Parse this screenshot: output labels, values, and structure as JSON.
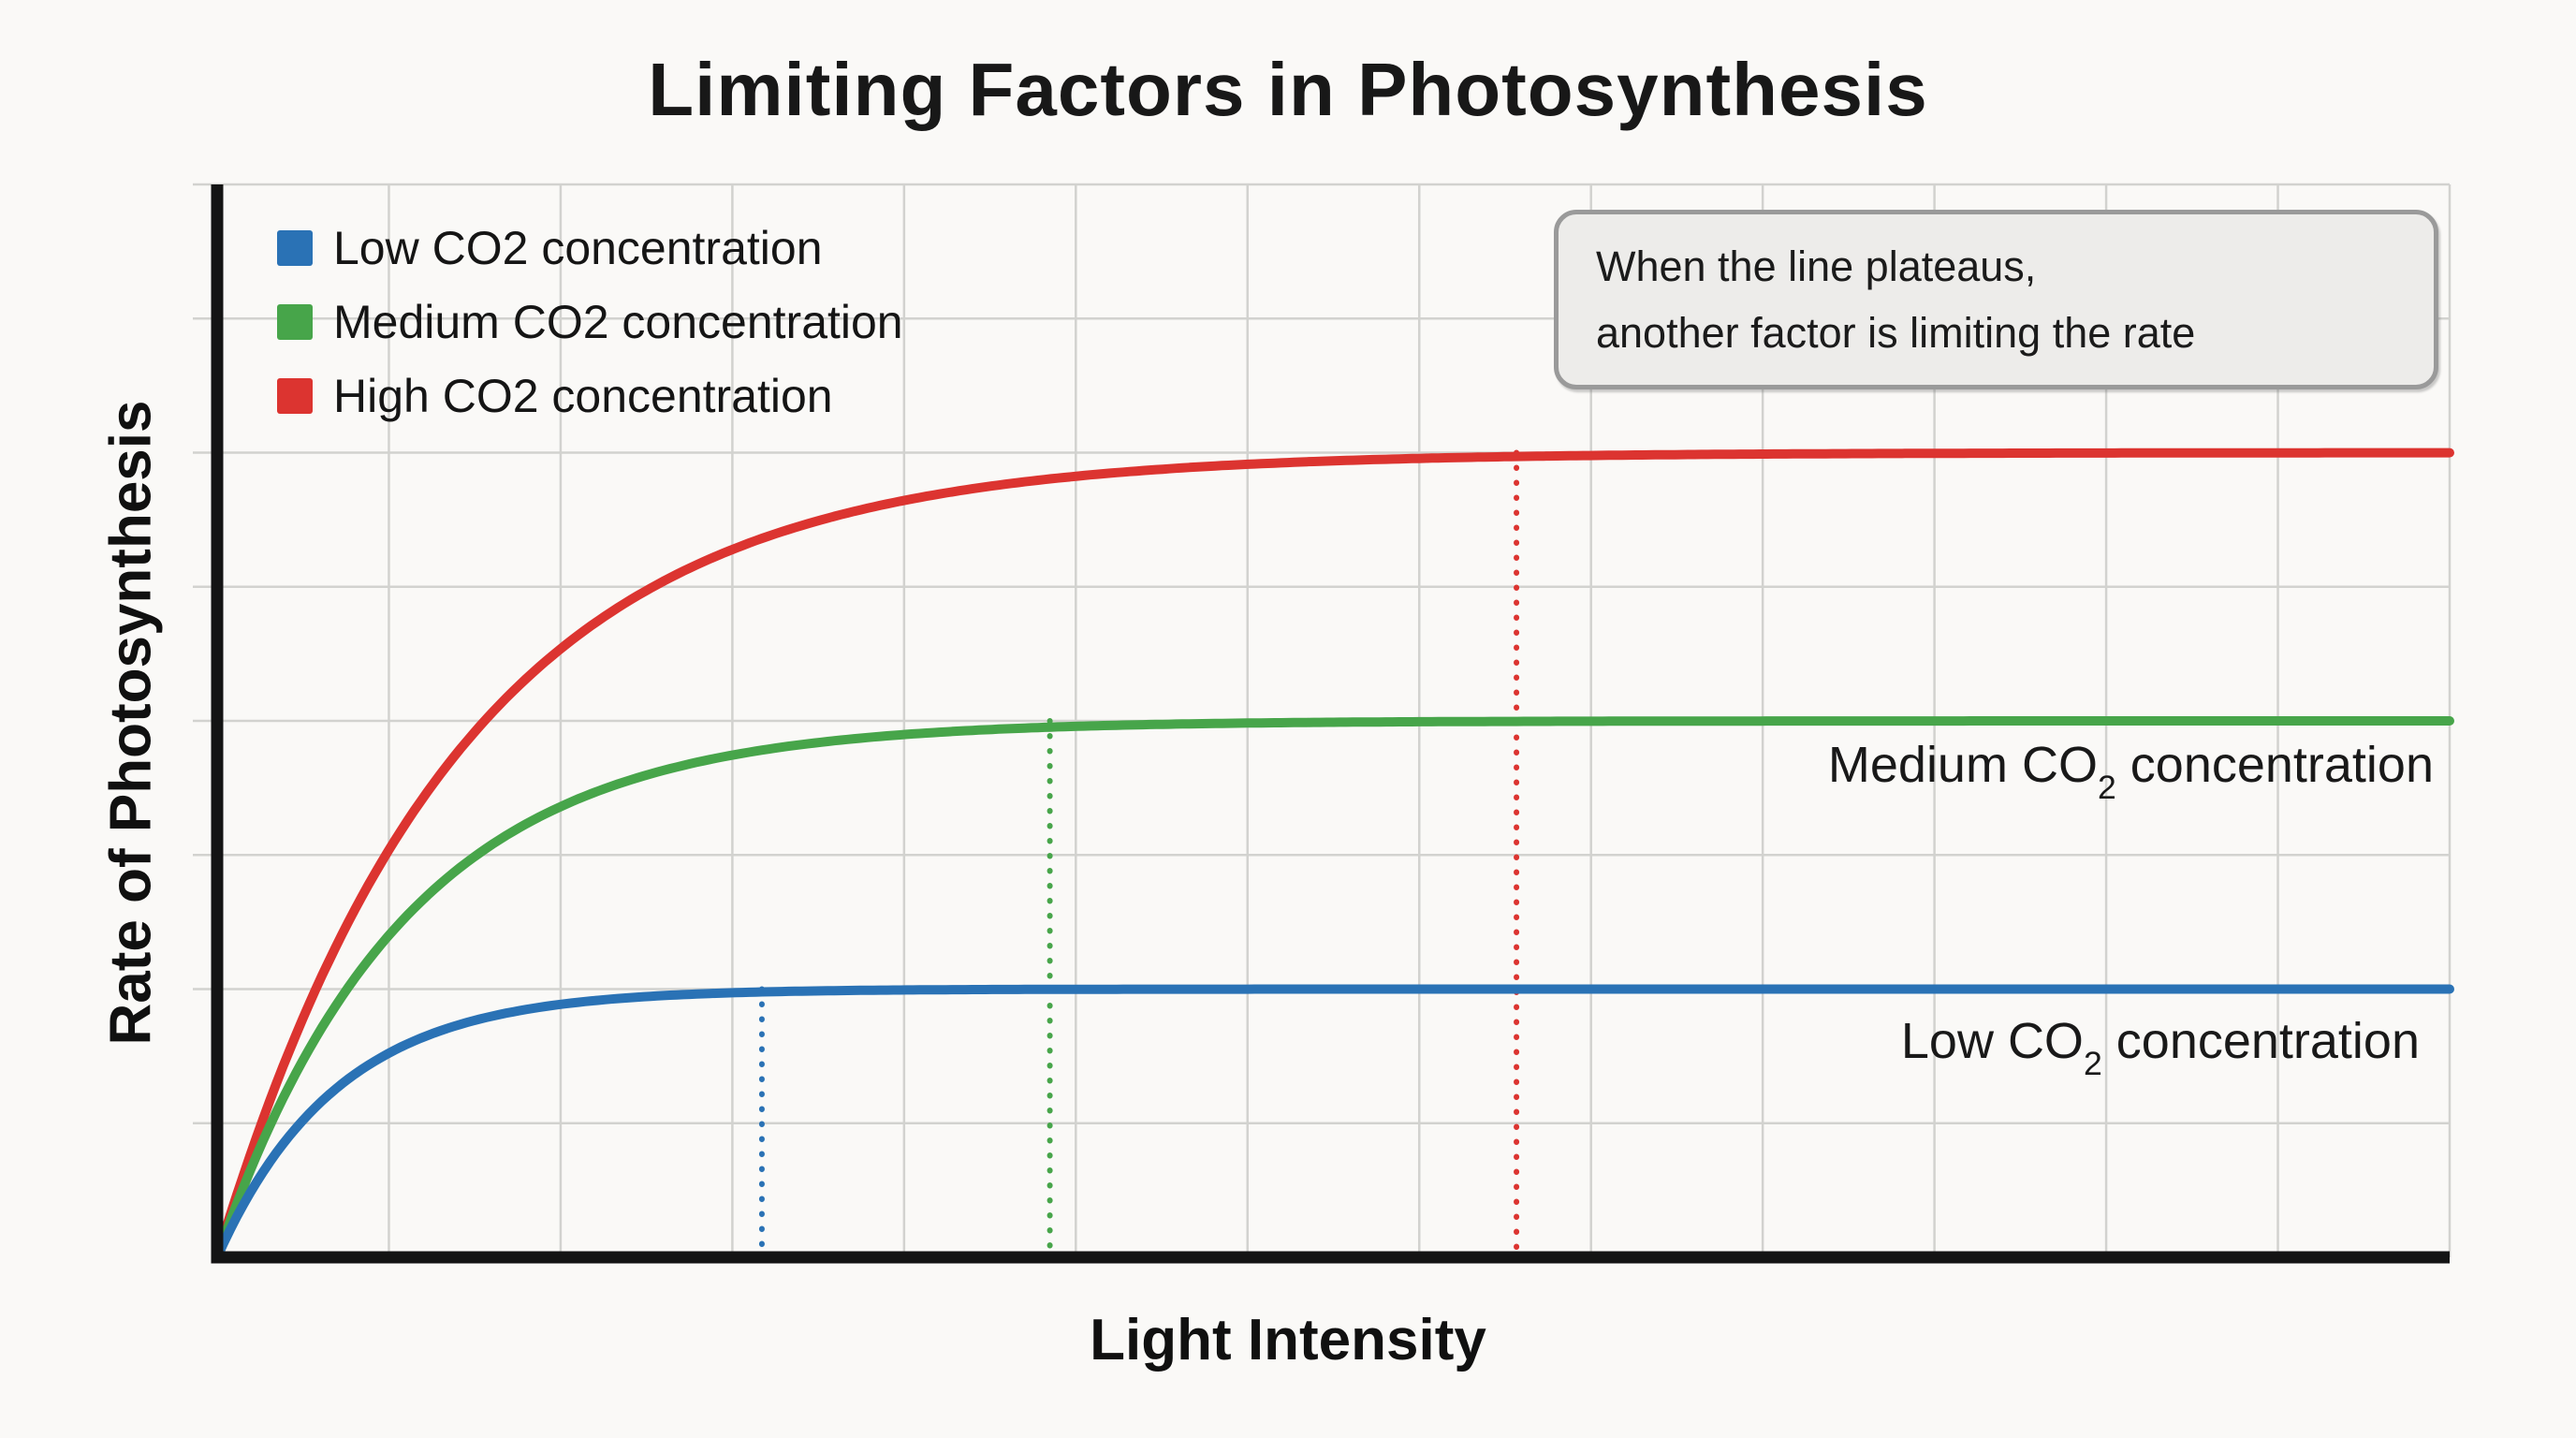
{
  "title": "Limiting Factors in Photosynthesis",
  "axes": {
    "x_label": "Light Intensity",
    "y_label": "Rate of Photosynthesis"
  },
  "legend": {
    "items": [
      {
        "label": "Low CO2 concentration",
        "color": "#2a72b5"
      },
      {
        "label": "Medium CO2 concentration",
        "color": "#47a54a"
      },
      {
        "label": "High CO2 concentration",
        "color": "#dc3430"
      }
    ]
  },
  "annotation": {
    "line1": "When the line plateaus,",
    "line2": "another factor is limiting the rate"
  },
  "curve_labels": {
    "medium": {
      "prefix": "Medium CO",
      "sub": "2",
      "suffix": " concentration"
    },
    "low": {
      "prefix": "Low CO",
      "sub": "2",
      "suffix": " concentration"
    }
  },
  "chart_data": {
    "type": "line",
    "title": "Limiting Factors in Photosynthesis",
    "xlabel": "Light Intensity",
    "ylabel": "Rate of Photosynthesis",
    "x_tick_labels": "none (qualitative axis)",
    "y_tick_labels": "none (qualitative axis)",
    "grid": true,
    "legend_position": "top-left inside plot",
    "ylim": [
      0,
      1
    ],
    "xlim": [
      0,
      1
    ],
    "model": "rate(x) = plateau_rate * (1 - exp(-x / rise_tau)), x = light intensity normalized 0..1",
    "series": [
      {
        "name": "High CO2 concentration",
        "color": "#dc3430",
        "plateau_rate": 0.75,
        "rise_tau": 0.109,
        "saturation_light_intensity": 0.582,
        "dotted_guide_x": 0.582
      },
      {
        "name": "Medium CO2 concentration",
        "color": "#47a54a",
        "plateau_rate": 0.5,
        "rise_tau": 0.0839,
        "saturation_light_intensity": 0.373,
        "dotted_guide_x": 0.373
      },
      {
        "name": "Low CO2 concentration",
        "color": "#2a72b5",
        "plateau_rate": 0.25,
        "rise_tau": 0.0537,
        "saturation_light_intensity": 0.244,
        "dotted_guide_x": 0.244
      }
    ],
    "annotation": "When the line plateaus, another factor is limiting the rate"
  },
  "colors": {
    "background": "#faf9f7",
    "grid": "#d2d2cf",
    "axis": "#141414",
    "text": "#1a1a1a",
    "annotation_bg": "#edecea",
    "annotation_border": "#9a9a9a"
  }
}
